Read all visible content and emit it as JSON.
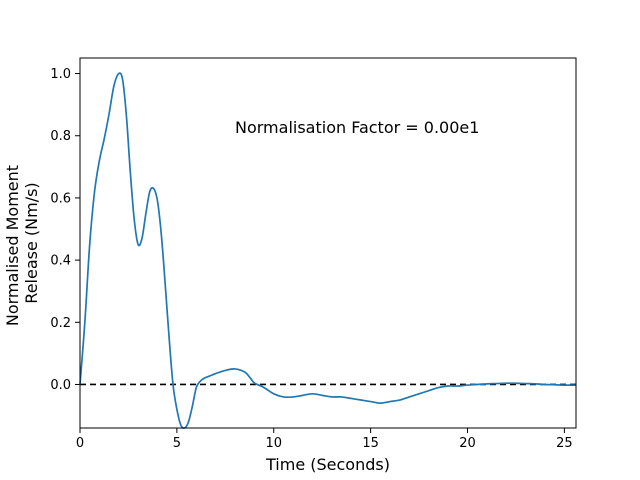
{
  "chart_data": {
    "type": "line",
    "title": "",
    "xlabel": "Time (Seconds)",
    "ylabel": [
      "Normalised Moment",
      "Release (Nm/s)"
    ],
    "xlim": [
      0,
      25.6
    ],
    "ylim": [
      -0.14,
      1.05
    ],
    "x_ticks": [
      0,
      5,
      10,
      15,
      20,
      25
    ],
    "x_tick_labels": [
      "0",
      "5",
      "10",
      "15",
      "20",
      "25"
    ],
    "y_ticks": [
      0.0,
      0.2,
      0.4,
      0.6,
      0.8,
      1.0
    ],
    "y_tick_labels": [
      "0.0",
      "0.2",
      "0.4",
      "0.6",
      "0.8",
      "1.0"
    ],
    "grid": false,
    "annotation": "Normalisation Factor = 0.00e1",
    "reference_line": {
      "y": 0,
      "style": "dashed",
      "color": "#000000"
    },
    "series": [
      {
        "color": "#1f77b4",
        "x": [
          0,
          0.25,
          0.5,
          0.75,
          1.0,
          1.25,
          1.5,
          1.75,
          2.0,
          2.2,
          2.4,
          2.6,
          2.8,
          3.0,
          3.2,
          3.4,
          3.6,
          3.8,
          4.0,
          4.2,
          4.4,
          4.6,
          4.8,
          5.0,
          5.2,
          5.4,
          5.6,
          5.8,
          6.0,
          6.2,
          6.4,
          6.6,
          6.8,
          7.0,
          7.5,
          8.0,
          8.5,
          8.8,
          9.0,
          9.5,
          10.0,
          10.5,
          11.0,
          11.5,
          12.0,
          12.5,
          13.0,
          13.5,
          14.0,
          14.5,
          15.0,
          15.5,
          16.0,
          16.5,
          17.0,
          17.5,
          18.0,
          18.5,
          19.0,
          19.5,
          20.0,
          20.5,
          21.0,
          21.5,
          22.0,
          22.5,
          23.0,
          23.5,
          24.0,
          24.5,
          25.0,
          25.6
        ],
        "y": [
          0.0,
          0.2,
          0.45,
          0.62,
          0.72,
          0.79,
          0.87,
          0.96,
          1.0,
          0.98,
          0.86,
          0.68,
          0.53,
          0.45,
          0.47,
          0.55,
          0.62,
          0.63,
          0.59,
          0.48,
          0.32,
          0.15,
          0.0,
          -0.08,
          -0.13,
          -0.14,
          -0.12,
          -0.07,
          -0.01,
          0.01,
          0.02,
          0.025,
          0.03,
          0.035,
          0.045,
          0.05,
          0.04,
          0.02,
          0.005,
          -0.01,
          -0.03,
          -0.04,
          -0.04,
          -0.035,
          -0.03,
          -0.035,
          -0.04,
          -0.04,
          -0.045,
          -0.05,
          -0.055,
          -0.06,
          -0.055,
          -0.05,
          -0.04,
          -0.03,
          -0.02,
          -0.01,
          -0.005,
          -0.005,
          -0.002,
          0.0,
          0.002,
          0.003,
          0.004,
          0.004,
          0.003,
          0.002,
          0.0,
          -0.001,
          -0.002,
          -0.002
        ]
      }
    ]
  }
}
